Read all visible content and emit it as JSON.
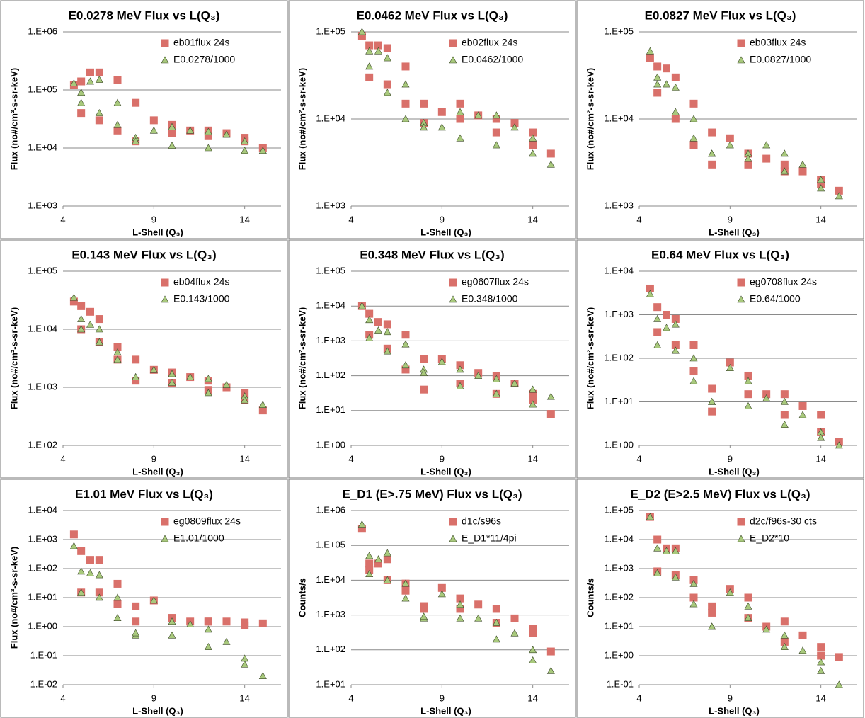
{
  "chart_data": [
    {
      "type": "scatter",
      "title": "E0.0278 MeV Flux vs L(Q₃)",
      "x_label": "L-Shell (Q₃)",
      "y_label": "Flux (no#/cm²-s-sr-keV)",
      "log_y": true,
      "grid": true,
      "legend": "upper right",
      "x": [
        4.6,
        5,
        5.5,
        6,
        7,
        8,
        9,
        10,
        11,
        12,
        13,
        14,
        15,
        14,
        12,
        10,
        8,
        7,
        6,
        5
      ],
      "xlim": [
        4,
        16
      ],
      "xticks": [
        4,
        9,
        14
      ],
      "ylim": [
        1000,
        1000000
      ],
      "yticks": [
        {
          "value": 1000,
          "label": "1.E+03"
        },
        {
          "value": 10000,
          "label": "1.E+04"
        },
        {
          "value": 100000,
          "label": "1.E+05"
        },
        {
          "value": 1000000,
          "label": "1.E+06"
        }
      ],
      "series": [
        {
          "name": "eb01flux 24s",
          "color": "#d9706a",
          "marker": "square",
          "values": [
            120000,
            140000,
            200000,
            200000,
            150000,
            60000,
            30000,
            25000,
            20000,
            20000,
            18000,
            15000,
            10000,
            13000,
            16000,
            18000,
            13000,
            20000,
            30000,
            40000
          ]
        },
        {
          "name": "E0.0278/1000",
          "color": "#a8c97c",
          "marker": "triangle",
          "values": [
            130000,
            90000,
            140000,
            150000,
            60000,
            15000,
            20000,
            23000,
            20000,
            19000,
            17000,
            13000,
            9000,
            9000,
            10000,
            11000,
            13000,
            25000,
            40000,
            60000
          ]
        }
      ]
    },
    {
      "type": "scatter",
      "title": "E0.0462 MeV Flux vs L(Q₃)",
      "x_label": "L-Shell (Q₃)",
      "y_label": "Flux (no#/cm²-s-sr-keV)",
      "log_y": true,
      "grid": true,
      "legend": "upper right",
      "x": [
        4.6,
        5,
        5.5,
        6,
        7,
        8,
        9,
        10,
        11,
        12,
        13,
        14,
        15,
        14,
        12,
        10,
        8,
        7,
        6,
        5
      ],
      "xlim": [
        4,
        16
      ],
      "xticks": [
        4,
        9,
        14
      ],
      "ylim": [
        1000,
        100000
      ],
      "yticks": [
        {
          "value": 1000,
          "label": "1.E+03"
        },
        {
          "value": 10000,
          "label": "1.E+04"
        },
        {
          "value": 100000,
          "label": "1.E+05"
        }
      ],
      "series": [
        {
          "name": "eb02flux 24s",
          "color": "#d9706a",
          "marker": "square",
          "values": [
            90000,
            70000,
            70000,
            65000,
            40000,
            15000,
            12000,
            15000,
            11000,
            10000,
            9000,
            7000,
            4000,
            5000,
            7000,
            10000,
            9000,
            15000,
            25000,
            30000
          ]
        },
        {
          "name": "E0.0462/1000",
          "color": "#a8c97c",
          "marker": "triangle",
          "values": [
            100000,
            60000,
            60000,
            50000,
            25000,
            9000,
            8000,
            12000,
            11000,
            11000,
            8000,
            6000,
            3000,
            4000,
            5000,
            6000,
            8000,
            10000,
            20000,
            40000
          ]
        }
      ]
    },
    {
      "type": "scatter",
      "title": "E0.0827 MeV Flux vs L(Q₃)",
      "x_label": "L-Shell (Q₃)",
      "y_label": "Flux (no#/cm²-s-sr-keV)",
      "log_y": true,
      "grid": true,
      "legend": "upper right",
      "x": [
        4.6,
        5,
        5.5,
        6,
        7,
        8,
        9,
        10,
        11,
        12,
        13,
        14,
        15,
        14,
        12,
        10,
        8,
        7,
        6,
        5
      ],
      "xlim": [
        4,
        16
      ],
      "xticks": [
        4,
        9,
        14
      ],
      "ylim": [
        1000,
        100000
      ],
      "yticks": [
        {
          "value": 1000,
          "label": "1.E+03"
        },
        {
          "value": 10000,
          "label": "1.E+04"
        },
        {
          "value": 100000,
          "label": "1.E+05"
        }
      ],
      "series": [
        {
          "name": "eb03flux 24s",
          "color": "#d9706a",
          "marker": "square",
          "values": [
            50000,
            40000,
            38000,
            30000,
            15000,
            7000,
            6000,
            4000,
            3500,
            3000,
            2500,
            2000,
            1500,
            1800,
            2500,
            3000,
            3000,
            5000,
            10000,
            20000
          ]
        },
        {
          "name": "E0.0827/1000",
          "color": "#a8c97c",
          "marker": "triangle",
          "values": [
            60000,
            30000,
            25000,
            23000,
            10000,
            4000,
            5000,
            4000,
            5000,
            4000,
            3000,
            2000,
            1300,
            1600,
            2500,
            3500,
            4000,
            6000,
            12000,
            25000
          ]
        }
      ]
    },
    {
      "type": "scatter",
      "title": "E0.143 MeV Flux vs L(Q₃)",
      "x_label": "L-Shell (Q₃)",
      "y_label": "Flux (no#/cm²-s-sr-keV)",
      "log_y": true,
      "grid": true,
      "legend": "upper right",
      "x": [
        4.6,
        5,
        5.5,
        6,
        7,
        8,
        9,
        10,
        11,
        12,
        13,
        14,
        15,
        14,
        12,
        10,
        8,
        7,
        6,
        5
      ],
      "xlim": [
        4,
        16
      ],
      "xticks": [
        4,
        9,
        14
      ],
      "ylim": [
        100,
        100000
      ],
      "yticks": [
        {
          "value": 100,
          "label": "1.E+02"
        },
        {
          "value": 1000,
          "label": "1.E+03"
        },
        {
          "value": 10000,
          "label": "1.E+04"
        },
        {
          "value": 100000,
          "label": "1.E+05"
        }
      ],
      "series": [
        {
          "name": "eb04flux 24s",
          "color": "#d9706a",
          "marker": "square",
          "values": [
            30000,
            25000,
            20000,
            15000,
            5000,
            3000,
            2000,
            1800,
            1500,
            1300,
            1000,
            800,
            400,
            600,
            900,
            1200,
            1300,
            3000,
            6000,
            10000
          ]
        },
        {
          "name": "E0.143/1000",
          "color": "#a8c97c",
          "marker": "triangle",
          "values": [
            35000,
            15000,
            12000,
            10000,
            4000,
            1500,
            2000,
            1700,
            1500,
            1400,
            1100,
            700,
            500,
            600,
            800,
            1200,
            1500,
            3000,
            6000,
            10000
          ]
        }
      ]
    },
    {
      "type": "scatter",
      "title": "E0.348 MeV Flux vs L(Q₃)",
      "x_label": "L-Shell (Q₃)",
      "y_label": "Flux (no#/cm²-s-sr-keV)",
      "log_y": true,
      "grid": true,
      "legend": "upper right",
      "x": [
        4.6,
        5,
        5.5,
        6,
        7,
        8,
        9,
        10,
        11,
        12,
        13,
        14,
        15,
        14,
        12,
        10,
        8,
        7,
        6,
        5
      ],
      "xlim": [
        4,
        16
      ],
      "xticks": [
        4,
        9,
        14
      ],
      "ylim": [
        1,
        100000
      ],
      "yticks": [
        {
          "value": 1,
          "label": "1.E+00"
        },
        {
          "value": 10,
          "label": "1.E+01"
        },
        {
          "value": 100,
          "label": "1.E+02"
        },
        {
          "value": 1000,
          "label": "1.E+03"
        },
        {
          "value": 10000,
          "label": "1.E+04"
        },
        {
          "value": 100000,
          "label": "1.E+05"
        }
      ],
      "series": [
        {
          "name": "eg0607flux 24s",
          "color": "#d9706a",
          "marker": "square",
          "values": [
            10000,
            6000,
            3500,
            3000,
            1500,
            300,
            300,
            200,
            120,
            100,
            60,
            30,
            8,
            20,
            30,
            60,
            40,
            150,
            600,
            1500
          ]
        },
        {
          "name": "E0.348/1000",
          "color": "#a8c97c",
          "marker": "triangle",
          "values": [
            10000,
            4000,
            2000,
            1800,
            800,
            150,
            250,
            150,
            100,
            80,
            60,
            40,
            25,
            15,
            30,
            50,
            120,
            200,
            500,
            1200
          ]
        }
      ]
    },
    {
      "type": "scatter",
      "title": "E0.64 MeV Flux vs L(Q₃)",
      "x_label": "L-Shell (Q₃)",
      "y_label": "Flux (no#/cm²-s-sr-keV)",
      "log_y": true,
      "grid": true,
      "legend": "upper right",
      "x": [
        4.6,
        5,
        5.5,
        6,
        7,
        8,
        9,
        10,
        11,
        12,
        13,
        14,
        15,
        14,
        12,
        10,
        8,
        7,
        6,
        5
      ],
      "xlim": [
        4,
        16
      ],
      "xticks": [
        4,
        9,
        14
      ],
      "ylim": [
        1,
        10000
      ],
      "yticks": [
        {
          "value": 1,
          "label": "1.E+00"
        },
        {
          "value": 10,
          "label": "1.E+01"
        },
        {
          "value": 100,
          "label": "1.E+02"
        },
        {
          "value": 1000,
          "label": "1.E+03"
        },
        {
          "value": 10000,
          "label": "1.E+04"
        }
      ],
      "series": [
        {
          "name": "eg0708flux 24s",
          "color": "#d9706a",
          "marker": "square",
          "values": [
            4000,
            1500,
            1000,
            800,
            200,
            20,
            80,
            40,
            15,
            15,
            8,
            5,
            1.2,
            2,
            5,
            15,
            6,
            50,
            200,
            400
          ]
        },
        {
          "name": "E0.64/1000",
          "color": "#a8c97c",
          "marker": "triangle",
          "values": [
            3000,
            800,
            500,
            600,
            100,
            10,
            60,
            30,
            12,
            10,
            5,
            2,
            1,
            1.5,
            3,
            8,
            10,
            30,
            150,
            200
          ]
        }
      ]
    },
    {
      "type": "scatter",
      "title": "E1.01 MeV Flux vs L(Q₃)",
      "x_label": "L-Shell (Q₃)",
      "y_label": "Flux (no#/cm²-s-sr-keV)",
      "log_y": true,
      "grid": true,
      "legend": "upper right",
      "x": [
        4.6,
        5,
        5.5,
        6,
        7,
        8,
        9,
        10,
        11,
        12,
        13,
        14,
        15,
        14,
        12,
        10,
        8,
        7,
        6,
        5
      ],
      "xlim": [
        4,
        16
      ],
      "xticks": [
        4,
        9,
        14
      ],
      "ylim": [
        0.01,
        10000
      ],
      "yticks": [
        {
          "value": 0.01,
          "label": "1.E-02"
        },
        {
          "value": 0.1,
          "label": "1.E-01"
        },
        {
          "value": 1,
          "label": "1.E+00"
        },
        {
          "value": 10,
          "label": "1.E+01"
        },
        {
          "value": 100,
          "label": "1.E+02"
        },
        {
          "value": 1000,
          "label": "1.E+03"
        },
        {
          "value": 10000,
          "label": "1.E+04"
        }
      ],
      "series": [
        {
          "name": "eg0809flux 24s",
          "color": "#d9706a",
          "marker": "square",
          "values": [
            1500,
            400,
            200,
            200,
            30,
            5,
            8,
            2,
            1.5,
            1.5,
            1.5,
            1.4,
            1.3,
            1.1,
            1.5,
            2,
            1.5,
            6,
            15,
            15
          ]
        },
        {
          "name": "E1.01/1000",
          "color": "#a8c97c",
          "marker": "triangle",
          "values": [
            600,
            80,
            70,
            60,
            10,
            0.5,
            8,
            1.5,
            1.2,
            0.8,
            0.3,
            0.08,
            0.02,
            0.05,
            0.2,
            0.5,
            0.6,
            2,
            10,
            15
          ]
        }
      ]
    },
    {
      "type": "scatter",
      "title": "E_D1 (E>.75 MeV) Flux vs L(Q₃)",
      "x_label": "L-Shell (Q₃)",
      "y_label": "Counts/s",
      "log_y": true,
      "grid": true,
      "legend": "upper right",
      "x": [
        4.6,
        5,
        5.5,
        6,
        7,
        8,
        9,
        10,
        11,
        12,
        13,
        14,
        15,
        14,
        12,
        10,
        8,
        7,
        6,
        5
      ],
      "xlim": [
        4,
        16
      ],
      "xticks": [
        4,
        9,
        14
      ],
      "ylim": [
        10,
        1000000
      ],
      "yticks": [
        {
          "value": 10,
          "label": "1.E+01"
        },
        {
          "value": 100,
          "label": "1.E+02"
        },
        {
          "value": 1000,
          "label": "1.E+03"
        },
        {
          "value": 10000,
          "label": "1.E+04"
        },
        {
          "value": 100000,
          "label": "1.E+05"
        },
        {
          "value": 1000000,
          "label": "1.E+06"
        }
      ],
      "series": [
        {
          "name": "d1c/s96s",
          "color": "#d9706a",
          "marker": "square",
          "values": [
            300000,
            30000,
            30000,
            40000,
            8000,
            1500,
            6000,
            3000,
            2000,
            1500,
            800,
            400,
            90,
            300,
            600,
            1500,
            1800,
            5000,
            10000,
            20000
          ]
        },
        {
          "name": "E_D1*11/4pi",
          "color": "#a8c97c",
          "marker": "triangle",
          "values": [
            400000,
            50000,
            40000,
            60000,
            8000,
            800,
            4000,
            2000,
            800,
            600,
            300,
            100,
            25,
            50,
            200,
            800,
            900,
            3000,
            10000,
            15000
          ]
        }
      ]
    },
    {
      "type": "scatter",
      "title": "E_D2 (E>2.5 MeV) Flux vs L(Q₃)",
      "x_label": "L-Shell (Q₃)",
      "y_label": "Counts/s",
      "log_y": true,
      "grid": true,
      "legend": "upper right",
      "x": [
        4.6,
        5,
        5.5,
        6,
        7,
        8,
        9,
        10,
        11,
        12,
        13,
        14,
        15,
        14,
        12,
        10,
        8,
        7,
        6,
        5
      ],
      "xlim": [
        4,
        16
      ],
      "xticks": [
        4,
        9,
        14
      ],
      "ylim": [
        0.1,
        100000
      ],
      "yticks": [
        {
          "value": 0.1,
          "label": "1.E-01"
        },
        {
          "value": 1,
          "label": "1.E+00"
        },
        {
          "value": 10,
          "label": "1.E+01"
        },
        {
          "value": 100,
          "label": "1.E+02"
        },
        {
          "value": 1000,
          "label": "1.E+03"
        },
        {
          "value": 10000,
          "label": "1.E+04"
        },
        {
          "value": 100000,
          "label": "1.E+05"
        }
      ],
      "series": [
        {
          "name": "d2c/f96s-30 cts",
          "color": "#d9706a",
          "marker": "square",
          "values": [
            60000,
            10000,
            5000,
            5000,
            400,
            50,
            200,
            100,
            10,
            15,
            5,
            2,
            0.9,
            1,
            3,
            20,
            30,
            100,
            600,
            800
          ]
        },
        {
          "name": "E_D2*10",
          "color": "#a8c97c",
          "marker": "triangle",
          "values": [
            60000,
            5000,
            4000,
            4000,
            300,
            10,
            150,
            50,
            8,
            5,
            1.5,
            0.6,
            0.1,
            0.3,
            2,
            20,
            10,
            60,
            500,
            700
          ]
        }
      ]
    }
  ]
}
